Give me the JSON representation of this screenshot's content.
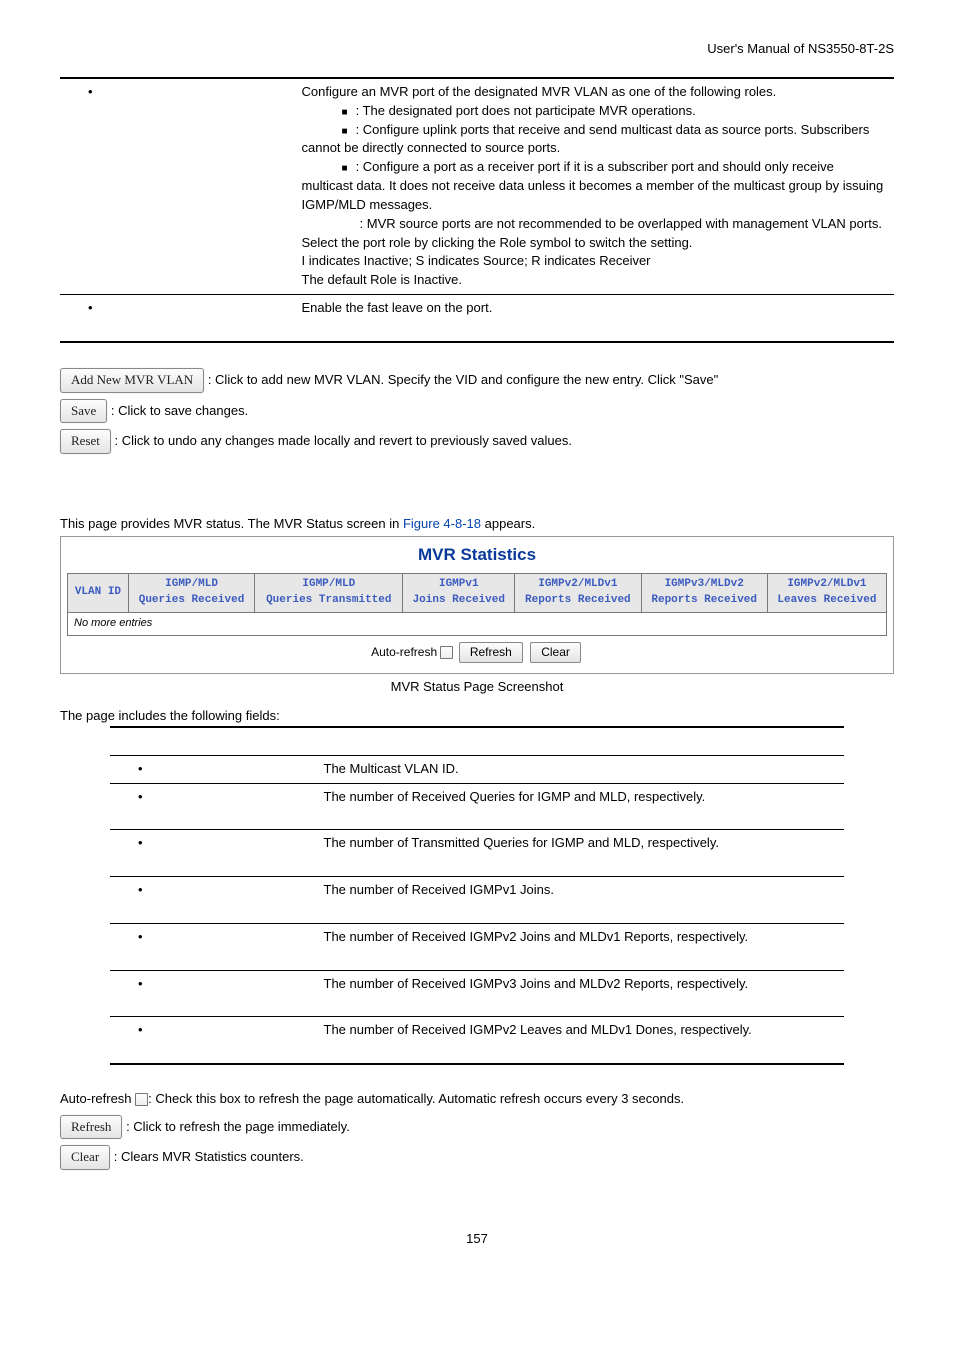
{
  "header": "User's Manual of NS3550-8T-2S",
  "table1": {
    "rows": [
      {
        "intro": "Configure an MVR port of the designated MVR VLAN as one of the following roles.",
        "items": [
          ": The designated port does not participate MVR operations.",
          ": Configure uplink ports that receive and send multicast data as source ports. Subscribers cannot be directly connected to source ports.",
          ": Configure a port as a receiver port if it is a subscriber port and should only receive multicast data. It does not receive data unless it becomes a member of the multicast group by issuing IGMP/MLD messages."
        ],
        "extra": [
          ": MVR source ports are not recommended to be overlapped with management VLAN ports.",
          "Select the port role by clicking the Role symbol to switch the setting.",
          "I indicates Inactive; S indicates Source; R indicates Receiver",
          "The default Role is Inactive."
        ]
      },
      {
        "desc": "Enable the fast leave on the port."
      }
    ]
  },
  "buttons1": {
    "add": "Add New MVR VLAN",
    "add_desc": ": Click to add new MVR VLAN. Specify the VID and configure the new entry. Click \"Save\"",
    "save": "Save",
    "save_desc": ": Click to save changes.",
    "reset": "Reset",
    "reset_desc": ": Click to undo any changes made locally and revert to previously saved values."
  },
  "section_line": {
    "pre": "This page provides MVR status. The MVR Status screen in ",
    "link": "Figure 4-8-18",
    "post": " appears."
  },
  "stats": {
    "title": "MVR Statistics",
    "headers": [
      "VLAN ID",
      "IGMP/MLD\nQueries Received",
      "IGMP/MLD\nQueries Transmitted",
      "IGMPv1\nJoins Received",
      "IGMPv2/MLDv1\nReports Received",
      "IGMPv3/MLDv2\nReports Received",
      "IGMPv2/MLDv1\nLeaves Received"
    ],
    "empty_row": "No more entries",
    "auto_label": "Auto-refresh",
    "refresh_btn": "Refresh",
    "clear_btn": "Clear",
    "caption": "MVR Status Page Screenshot"
  },
  "fields_intro": "The page includes the following fields:",
  "fields": [
    "The Multicast VLAN ID.",
    "The number of Received Queries for IGMP and MLD, respectively.",
    "The number of Transmitted Queries for IGMP and MLD, respectively.",
    "The number of Received IGMPv1 Joins.",
    "The number of Received IGMPv2 Joins and MLDv1 Reports, respectively.",
    "The number of Received IGMPv3 Joins and MLDv2 Reports, respectively.",
    "The number of Received IGMPv2 Leaves and MLDv1 Dones, respectively."
  ],
  "footer": {
    "auto": "Auto-refresh ",
    "auto_desc": ": Check this box to refresh the page automatically. Automatic refresh occurs every 3 seconds.",
    "refresh": "Refresh",
    "refresh_desc": ": Click to refresh the page immediately.",
    "clear": "Clear",
    "clear_desc": ": Clears MVR Statistics counters."
  },
  "page_number": "157"
}
